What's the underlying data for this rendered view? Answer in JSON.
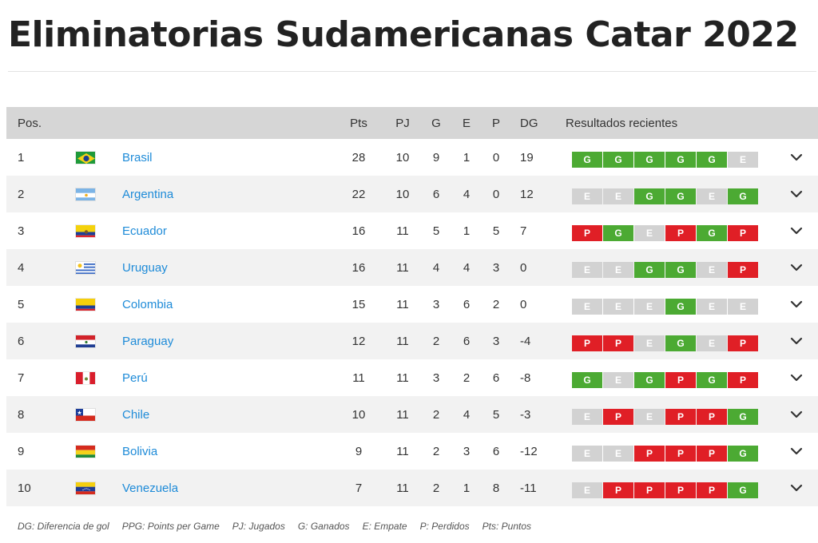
{
  "page": {
    "title": "Eliminatorias Sudamericanas Catar 2022"
  },
  "headers": {
    "pos": "Pos.",
    "pts": "Pts",
    "pj": "PJ",
    "g": "G",
    "e": "E",
    "p": "P",
    "dg": "DG",
    "results": "Resultados recientes"
  },
  "colors": {
    "win": "#4caa33",
    "draw": "#d2d2d2",
    "loss": "#e01f26",
    "link": "#1e8bd8",
    "header_bg": "#d6d6d6"
  },
  "rows": [
    {
      "pos": "1",
      "flag": "brazil-flag",
      "team": "Brasil",
      "pts": "28",
      "pj": "10",
      "g": "9",
      "e": "1",
      "p": "0",
      "dg": "19",
      "results": [
        "G",
        "G",
        "G",
        "G",
        "G",
        "E"
      ]
    },
    {
      "pos": "2",
      "flag": "argentina-flag",
      "team": "Argentina",
      "pts": "22",
      "pj": "10",
      "g": "6",
      "e": "4",
      "p": "0",
      "dg": "12",
      "results": [
        "E",
        "E",
        "G",
        "G",
        "E",
        "G"
      ]
    },
    {
      "pos": "3",
      "flag": "ecuador-flag",
      "team": "Ecuador",
      "pts": "16",
      "pj": "11",
      "g": "5",
      "e": "1",
      "p": "5",
      "dg": "7",
      "results": [
        "P",
        "G",
        "E",
        "P",
        "G",
        "P"
      ]
    },
    {
      "pos": "4",
      "flag": "uruguay-flag",
      "team": "Uruguay",
      "pts": "16",
      "pj": "11",
      "g": "4",
      "e": "4",
      "p": "3",
      "dg": "0",
      "results": [
        "E",
        "E",
        "G",
        "G",
        "E",
        "P"
      ]
    },
    {
      "pos": "5",
      "flag": "colombia-flag",
      "team": "Colombia",
      "pts": "15",
      "pj": "11",
      "g": "3",
      "e": "6",
      "p": "2",
      "dg": "0",
      "results": [
        "E",
        "E",
        "E",
        "G",
        "E",
        "E"
      ]
    },
    {
      "pos": "6",
      "flag": "paraguay-flag",
      "team": "Paraguay",
      "pts": "12",
      "pj": "11",
      "g": "2",
      "e": "6",
      "p": "3",
      "dg": "-4",
      "results": [
        "P",
        "P",
        "E",
        "G",
        "E",
        "P"
      ]
    },
    {
      "pos": "7",
      "flag": "peru-flag",
      "team": "Perú",
      "pts": "11",
      "pj": "11",
      "g": "3",
      "e": "2",
      "p": "6",
      "dg": "-8",
      "results": [
        "G",
        "E",
        "G",
        "P",
        "G",
        "P"
      ]
    },
    {
      "pos": "8",
      "flag": "chile-flag",
      "team": "Chile",
      "pts": "10",
      "pj": "11",
      "g": "2",
      "e": "4",
      "p": "5",
      "dg": "-3",
      "results": [
        "E",
        "P",
        "E",
        "P",
        "P",
        "G"
      ]
    },
    {
      "pos": "9",
      "flag": "bolivia-flag",
      "team": "Bolivia",
      "pts": "9",
      "pj": "11",
      "g": "2",
      "e": "3",
      "p": "6",
      "dg": "-12",
      "results": [
        "E",
        "E",
        "P",
        "P",
        "P",
        "G"
      ]
    },
    {
      "pos": "10",
      "flag": "venezuela-flag",
      "team": "Venezuela",
      "pts": "7",
      "pj": "11",
      "g": "2",
      "e": "1",
      "p": "8",
      "dg": "-11",
      "results": [
        "E",
        "P",
        "P",
        "P",
        "P",
        "G"
      ]
    }
  ],
  "legend": [
    "DG: Diferencia de gol",
    "PPG: Points per Game",
    "PJ: Jugados",
    "G: Ganados",
    "E: Empate",
    "P: Perdidos",
    "Pts: Puntos"
  ]
}
